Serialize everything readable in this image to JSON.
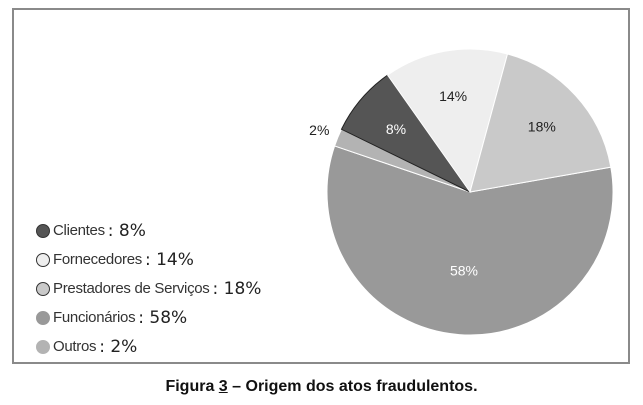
{
  "chart_data": {
    "type": "pie",
    "title": "",
    "slices": [
      {
        "name": "Clientes",
        "value": 8,
        "label": "8%",
        "color": "#555555"
      },
      {
        "name": "Fornecedores",
        "value": 14,
        "label": "14%",
        "color": "#eeeeee"
      },
      {
        "name": "Prestadores de Serviços",
        "value": 18,
        "label": "18%",
        "color": "#c9c9c9"
      },
      {
        "name": "Funcionários",
        "value": 58,
        "label": "58%",
        "color": "#999999"
      },
      {
        "name": "Outros",
        "value": 2,
        "label": "2%",
        "color": "#b3b3b3"
      }
    ],
    "legend_placement": "left",
    "legend": [
      {
        "label": "Clientes",
        "value": ": 8%"
      },
      {
        "label": "Fornecedores",
        "value": ": 14%"
      },
      {
        "label": "Prestadores de Serviços",
        "value": ": 18%"
      },
      {
        "label": "Funcionários",
        "value": ": 58%"
      },
      {
        "label": "Outros",
        "value": ": 2%"
      }
    ]
  },
  "caption": {
    "prefix": "Figura ",
    "number": "3",
    "suffix": " – Origem dos atos fraudulentos."
  }
}
